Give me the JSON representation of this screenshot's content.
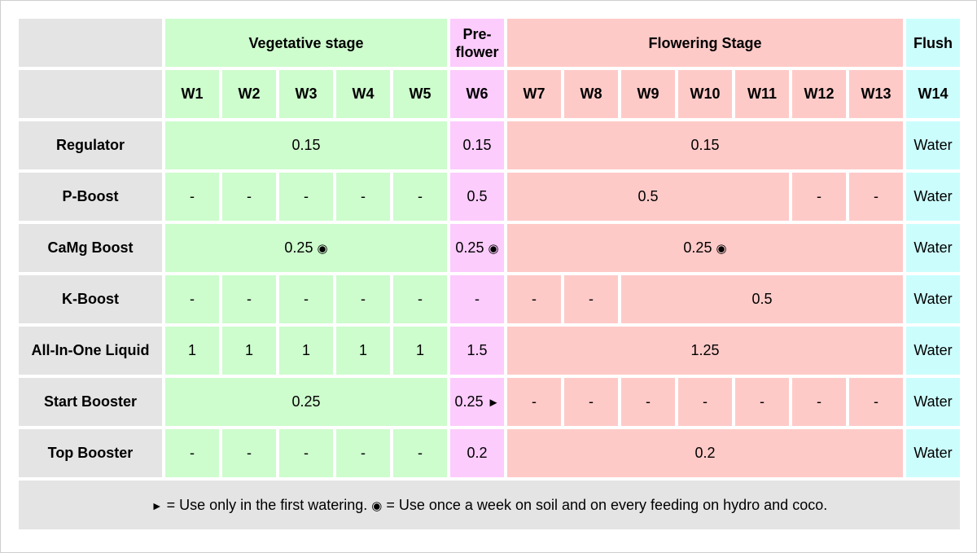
{
  "stages": {
    "vegetative": "Vegetative stage",
    "preflower": "Pre-\nflower",
    "flowering": "Flowering Stage",
    "flush": "Flush"
  },
  "weeks": [
    "W1",
    "W2",
    "W3",
    "W4",
    "W5",
    "W6",
    "W7",
    "W8",
    "W9",
    "W10",
    "W11",
    "W12",
    "W13",
    "W14"
  ],
  "symbols": {
    "triangle": "►",
    "circle": "◉"
  },
  "rows": {
    "regulator": {
      "label": "Regulator",
      "veg": "0.15",
      "pre": "0.15",
      "flower": "0.15",
      "flush": "Water"
    },
    "pboost": {
      "label": "P-Boost",
      "veg": [
        "-",
        "-",
        "-",
        "-",
        "-"
      ],
      "pre": "0.5",
      "flower_main": "0.5",
      "flower_tail": [
        "-",
        "-"
      ],
      "flush": "Water"
    },
    "camg": {
      "label": "CaMg Boost",
      "veg": "0.25",
      "pre": "0.25",
      "flower": "0.25",
      "flush": "Water"
    },
    "kboost": {
      "label": "K-Boost",
      "veg": [
        "-",
        "-",
        "-",
        "-",
        "-"
      ],
      "pre": "-",
      "flower_head": [
        "-",
        "-"
      ],
      "flower_main": "0.5",
      "flush": "Water"
    },
    "allinone": {
      "label": "All-In-One Liquid",
      "veg": [
        "1",
        "1",
        "1",
        "1",
        "1"
      ],
      "pre": "1.5",
      "flower": "1.25",
      "flush": "Water"
    },
    "startbooster": {
      "label": "Start Booster",
      "veg": "0.25",
      "pre": "0.25",
      "flower": [
        "-",
        "-",
        "-",
        "-",
        "-",
        "-",
        "-"
      ],
      "flush": "Water"
    },
    "topbooster": {
      "label": "Top Booster",
      "veg": [
        "-",
        "-",
        "-",
        "-",
        "-"
      ],
      "pre": "0.2",
      "flower": "0.2",
      "flush": "Water"
    }
  },
  "footnote": {
    "triangle": "►",
    "triangle_text": " = Use only in the first watering. ",
    "circle": "◉",
    "circle_text": " = Use once a week on soil and on every feeding on hydro and coco."
  }
}
